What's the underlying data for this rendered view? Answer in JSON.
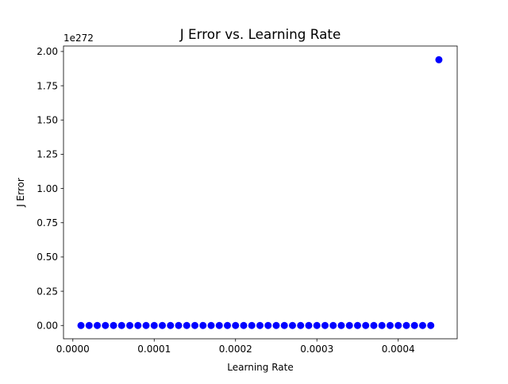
{
  "chart_data": {
    "type": "scatter",
    "title": "J Error vs. Learning Rate",
    "xlabel": "Learning Rate",
    "ylabel": "J Error",
    "y_offset_label": "1e272",
    "xlim": [
      -1.15e-05,
      0.0004725
    ],
    "ylim": [
      -0.097,
      2.04
    ],
    "xticks": [
      {
        "value": 0.0,
        "label": "0.0000"
      },
      {
        "value": 0.0001,
        "label": "0.0001"
      },
      {
        "value": 0.0002,
        "label": "0.0002"
      },
      {
        "value": 0.0003,
        "label": "0.0003"
      },
      {
        "value": 0.0004,
        "label": "0.0004"
      }
    ],
    "yticks": [
      {
        "value": 0.0,
        "label": "0.00"
      },
      {
        "value": 0.25,
        "label": "0.25"
      },
      {
        "value": 0.5,
        "label": "0.50"
      },
      {
        "value": 0.75,
        "label": "0.75"
      },
      {
        "value": 1.0,
        "label": "1.00"
      },
      {
        "value": 1.25,
        "label": "1.25"
      },
      {
        "value": 1.5,
        "label": "1.50"
      },
      {
        "value": 1.75,
        "label": "1.75"
      },
      {
        "value": 2.0,
        "label": "2.00"
      }
    ],
    "grid": false,
    "marker_color": "#0000ff",
    "series": [
      {
        "x": [
          1e-05,
          2e-05,
          3e-05,
          4e-05,
          5e-05,
          6e-05,
          7e-05,
          8e-05,
          9e-05,
          0.0001,
          0.00011,
          0.00012,
          0.00013,
          0.00014,
          0.00015,
          0.00016,
          0.00017,
          0.00018,
          0.00019,
          0.0002,
          0.00021,
          0.00022,
          0.00023,
          0.00024,
          0.00025,
          0.00026,
          0.00027,
          0.00028,
          0.00029,
          0.0003,
          0.00031,
          0.00032,
          0.00033,
          0.00034,
          0.00035,
          0.00036,
          0.00037,
          0.00038,
          0.00039,
          0.0004,
          0.00041,
          0.00042,
          0.00043,
          0.00044,
          0.00045
        ],
        "y": [
          0,
          0,
          0,
          0,
          0,
          0,
          0,
          0,
          0,
          0,
          0,
          0,
          0,
          0,
          0,
          0,
          0,
          0,
          0,
          0,
          0,
          0,
          0,
          0,
          0,
          0,
          0,
          0,
          0,
          0,
          0,
          0,
          0,
          0,
          0,
          0,
          0,
          0,
          0,
          0,
          0,
          0,
          0,
          0,
          1.94
        ]
      }
    ]
  }
}
